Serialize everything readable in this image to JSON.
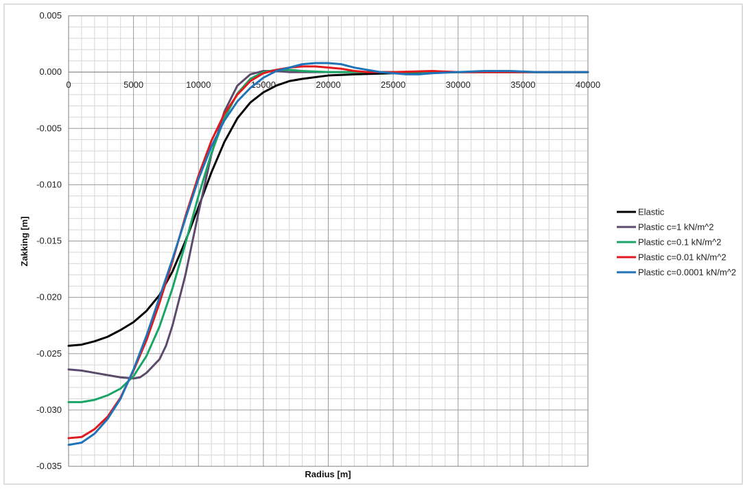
{
  "chart_data": {
    "type": "line",
    "title": "",
    "xlabel": "Radius [m]",
    "ylabel": "Zakking [m]",
    "xlim": [
      0,
      40000
    ],
    "ylim": [
      -0.035,
      0.005
    ],
    "x_ticks": [
      "0",
      "5000",
      "10000",
      "15000",
      "20000",
      "25000",
      "30000",
      "35000",
      "40000"
    ],
    "y_ticks": [
      "0.005",
      "0.000",
      "-0.005",
      "-0.010",
      "-0.015",
      "-0.020",
      "-0.025",
      "-0.030",
      "-0.035"
    ],
    "grid": true,
    "legend_position": "right",
    "series": [
      {
        "name": "Elastic",
        "color": "#000000",
        "points": [
          [
            0,
            -0.0243
          ],
          [
            1000,
            -0.0242
          ],
          [
            2000,
            -0.0239
          ],
          [
            3000,
            -0.0235
          ],
          [
            4000,
            -0.0229
          ],
          [
            5000,
            -0.0222
          ],
          [
            6000,
            -0.0212
          ],
          [
            7000,
            -0.0198
          ],
          [
            8000,
            -0.0177
          ],
          [
            9000,
            -0.015
          ],
          [
            10000,
            -0.012
          ],
          [
            11000,
            -0.0089
          ],
          [
            12000,
            -0.0062
          ],
          [
            13000,
            -0.0041
          ],
          [
            14000,
            -0.0027
          ],
          [
            15000,
            -0.0018
          ],
          [
            16000,
            -0.0012
          ],
          [
            17000,
            -0.0008
          ],
          [
            18000,
            -0.0006
          ],
          [
            20000,
            -0.0003
          ],
          [
            22000,
            -0.0002
          ],
          [
            25000,
            -0.0001
          ],
          [
            30000,
            0
          ],
          [
            35000,
            0
          ],
          [
            40000,
            0
          ]
        ]
      },
      {
        "name": "Plastic c=1 kN/m^2",
        "color": "#5b4a6b",
        "points": [
          [
            0,
            -0.0264
          ],
          [
            1000,
            -0.0265
          ],
          [
            2000,
            -0.0267
          ],
          [
            3000,
            -0.0269
          ],
          [
            4000,
            -0.0271
          ],
          [
            5000,
            -0.0272
          ],
          [
            5500,
            -0.0271
          ],
          [
            6000,
            -0.0267
          ],
          [
            7000,
            -0.0255
          ],
          [
            7500,
            -0.0243
          ],
          [
            8000,
            -0.0225
          ],
          [
            9000,
            -0.018
          ],
          [
            10000,
            -0.0125
          ],
          [
            11000,
            -0.0073
          ],
          [
            12000,
            -0.0035
          ],
          [
            13000,
            -0.0012
          ],
          [
            14000,
            -0.0002
          ],
          [
            15000,
            0.0001
          ],
          [
            16000,
            0.0001
          ],
          [
            17000,
            0
          ],
          [
            20000,
            0
          ],
          [
            25000,
            0
          ],
          [
            30000,
            0
          ],
          [
            35000,
            0
          ],
          [
            40000,
            0
          ]
        ]
      },
      {
        "name": "Plastic c=0.1 kN/m^2",
        "color": "#19a565",
        "points": [
          [
            0,
            -0.0293
          ],
          [
            1000,
            -0.0293
          ],
          [
            2000,
            -0.0291
          ],
          [
            3000,
            -0.0287
          ],
          [
            4000,
            -0.0281
          ],
          [
            5000,
            -0.027
          ],
          [
            6000,
            -0.0252
          ],
          [
            7000,
            -0.0226
          ],
          [
            8000,
            -0.0192
          ],
          [
            9000,
            -0.0152
          ],
          [
            10000,
            -0.011
          ],
          [
            11000,
            -0.0072
          ],
          [
            12000,
            -0.0041
          ],
          [
            13000,
            -0.0019
          ],
          [
            14000,
            -0.0006
          ],
          [
            15000,
            0
          ],
          [
            16000,
            0.0002
          ],
          [
            17000,
            0.0002
          ],
          [
            18000,
            0.0001
          ],
          [
            20000,
            0
          ],
          [
            25000,
            0
          ],
          [
            30000,
            0
          ],
          [
            35000,
            0
          ],
          [
            40000,
            0
          ]
        ]
      },
      {
        "name": "Plastic c=0.01 kN/m^2",
        "color": "#e3181c",
        "points": [
          [
            0,
            -0.0325
          ],
          [
            1000,
            -0.0324
          ],
          [
            2000,
            -0.0317
          ],
          [
            3000,
            -0.0306
          ],
          [
            4000,
            -0.0289
          ],
          [
            5000,
            -0.0265
          ],
          [
            6000,
            -0.0238
          ],
          [
            7000,
            -0.0205
          ],
          [
            8000,
            -0.0168
          ],
          [
            9000,
            -0.0128
          ],
          [
            10000,
            -0.0092
          ],
          [
            11000,
            -0.0061
          ],
          [
            12000,
            -0.0037
          ],
          [
            13000,
            -0.002
          ],
          [
            14000,
            -0.0008
          ],
          [
            15000,
            -0.0001
          ],
          [
            16000,
            0.0002
          ],
          [
            17000,
            0.0004
          ],
          [
            18000,
            0.0005
          ],
          [
            19000,
            0.0005
          ],
          [
            20000,
            0.0004
          ],
          [
            21000,
            0.0003
          ],
          [
            22000,
            0.0001
          ],
          [
            23000,
            0
          ],
          [
            25000,
            0
          ],
          [
            28000,
            0.0001
          ],
          [
            30000,
            0
          ],
          [
            35000,
            0
          ],
          [
            40000,
            0
          ]
        ]
      },
      {
        "name": "Plastic c=0.0001 kN/m^2",
        "color": "#1f73b8",
        "points": [
          [
            0,
            -0.0331
          ],
          [
            1000,
            -0.0329
          ],
          [
            2000,
            -0.0321
          ],
          [
            3000,
            -0.0308
          ],
          [
            4000,
            -0.029
          ],
          [
            5000,
            -0.0264
          ],
          [
            6000,
            -0.0234
          ],
          [
            7000,
            -0.02
          ],
          [
            8000,
            -0.0166
          ],
          [
            9000,
            -0.013
          ],
          [
            10000,
            -0.0095
          ],
          [
            11000,
            -0.0066
          ],
          [
            12000,
            -0.0043
          ],
          [
            13000,
            -0.0026
          ],
          [
            14000,
            -0.0014
          ],
          [
            15000,
            -0.0005
          ],
          [
            16000,
            0.0001
          ],
          [
            17000,
            0.0004
          ],
          [
            18000,
            0.0007
          ],
          [
            19000,
            0.0008
          ],
          [
            20000,
            0.0008
          ],
          [
            21000,
            0.0007
          ],
          [
            22000,
            0.0004
          ],
          [
            23000,
            0.0002
          ],
          [
            24000,
            0
          ],
          [
            25000,
            -0.0001
          ],
          [
            26000,
            -0.0002
          ],
          [
            27000,
            -0.0002
          ],
          [
            28000,
            -0.0001
          ],
          [
            30000,
            0
          ],
          [
            32000,
            0.0001
          ],
          [
            34000,
            0.0001
          ],
          [
            36000,
            0
          ],
          [
            38000,
            0
          ],
          [
            40000,
            0
          ]
        ]
      }
    ]
  }
}
